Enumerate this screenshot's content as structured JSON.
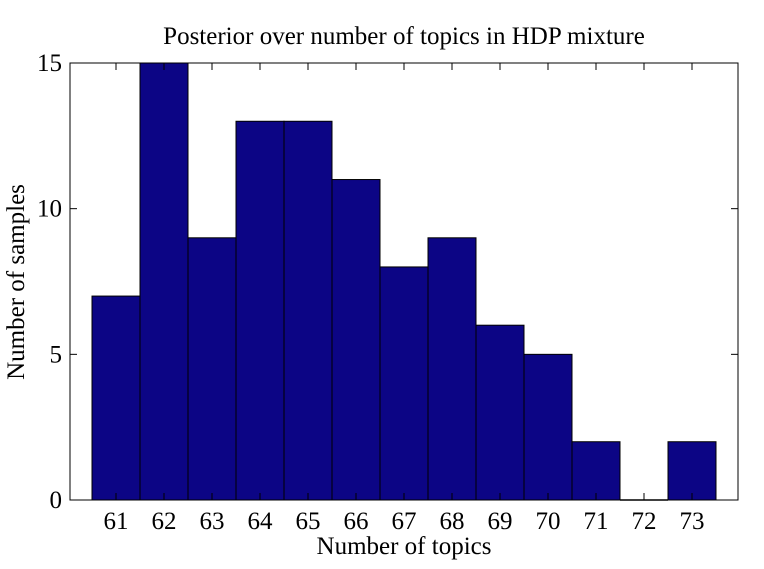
{
  "chart_data": {
    "type": "bar",
    "title": "Posterior over number of topics in HDP mixture",
    "xlabel": "Number of topics",
    "ylabel": "Number of samples",
    "categories": [
      "61",
      "62",
      "63",
      "64",
      "65",
      "66",
      "67",
      "68",
      "69",
      "70",
      "71",
      "72",
      "73"
    ],
    "values": [
      7,
      15,
      9,
      13,
      13,
      11,
      8,
      9,
      6,
      5,
      2,
      0,
      2
    ],
    "ylim": [
      0,
      15
    ],
    "yticks": [
      "0",
      "5",
      "10",
      "15"
    ],
    "grid": false,
    "legend": false,
    "bar_color": "#0c0585",
    "bar_edge_color": "#000000"
  }
}
